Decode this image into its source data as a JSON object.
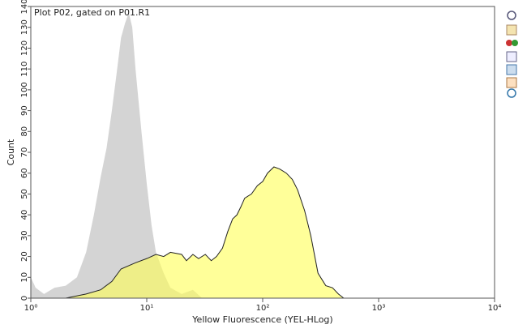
{
  "chart_data": {
    "type": "area",
    "title": "Plot P02, gated on P01.R1",
    "xlabel": "Yellow Fluorescence (YEL-HLog)",
    "ylabel": "Count",
    "xscale": "log",
    "xlim": [
      1,
      10000
    ],
    "xticks": [
      {
        "value": 1,
        "label": "10⁰"
      },
      {
        "value": 10,
        "label": "10¹"
      },
      {
        "value": 100,
        "label": "10²"
      },
      {
        "value": 1000,
        "label": "10³"
      },
      {
        "value": 10000,
        "label": "10⁴"
      }
    ],
    "ylim": [
      0,
      140
    ],
    "yticks": [
      0,
      10,
      20,
      30,
      40,
      50,
      60,
      70,
      80,
      90,
      100,
      110,
      120,
      130,
      140
    ],
    "series": [
      {
        "color": "#d4d4d4",
        "x": [
          1,
          1.1,
          1.3,
          1.6,
          2,
          2.5,
          3,
          3.5,
          4,
          4.5,
          5,
          5.5,
          6,
          6.5,
          7,
          7.5,
          8,
          9,
          10,
          11,
          12,
          14,
          16,
          20,
          25,
          30
        ],
        "values": [
          10,
          5,
          2,
          5,
          6,
          10,
          22,
          40,
          58,
          72,
          90,
          108,
          125,
          132,
          137,
          130,
          110,
          80,
          55,
          35,
          22,
          12,
          5,
          2,
          4,
          0
        ]
      },
      {
        "color": "#ffff55",
        "x": [
          2,
          3,
          4,
          5,
          6,
          8,
          10,
          12,
          14,
          16,
          20,
          22,
          25,
          28,
          32,
          36,
          40,
          45,
          50,
          55,
          60,
          65,
          70,
          80,
          90,
          100,
          110,
          125,
          140,
          160,
          180,
          200,
          230,
          260,
          300,
          350,
          400,
          450,
          500
        ],
        "values": [
          0,
          2,
          4,
          8,
          14,
          17,
          19,
          21,
          20,
          22,
          21,
          18,
          21,
          19,
          21,
          18,
          20,
          24,
          32,
          38,
          40,
          44,
          48,
          50,
          54,
          56,
          60,
          63,
          62,
          60,
          57,
          52,
          42,
          30,
          12,
          6,
          5,
          2,
          0
        ]
      }
    ]
  }
}
